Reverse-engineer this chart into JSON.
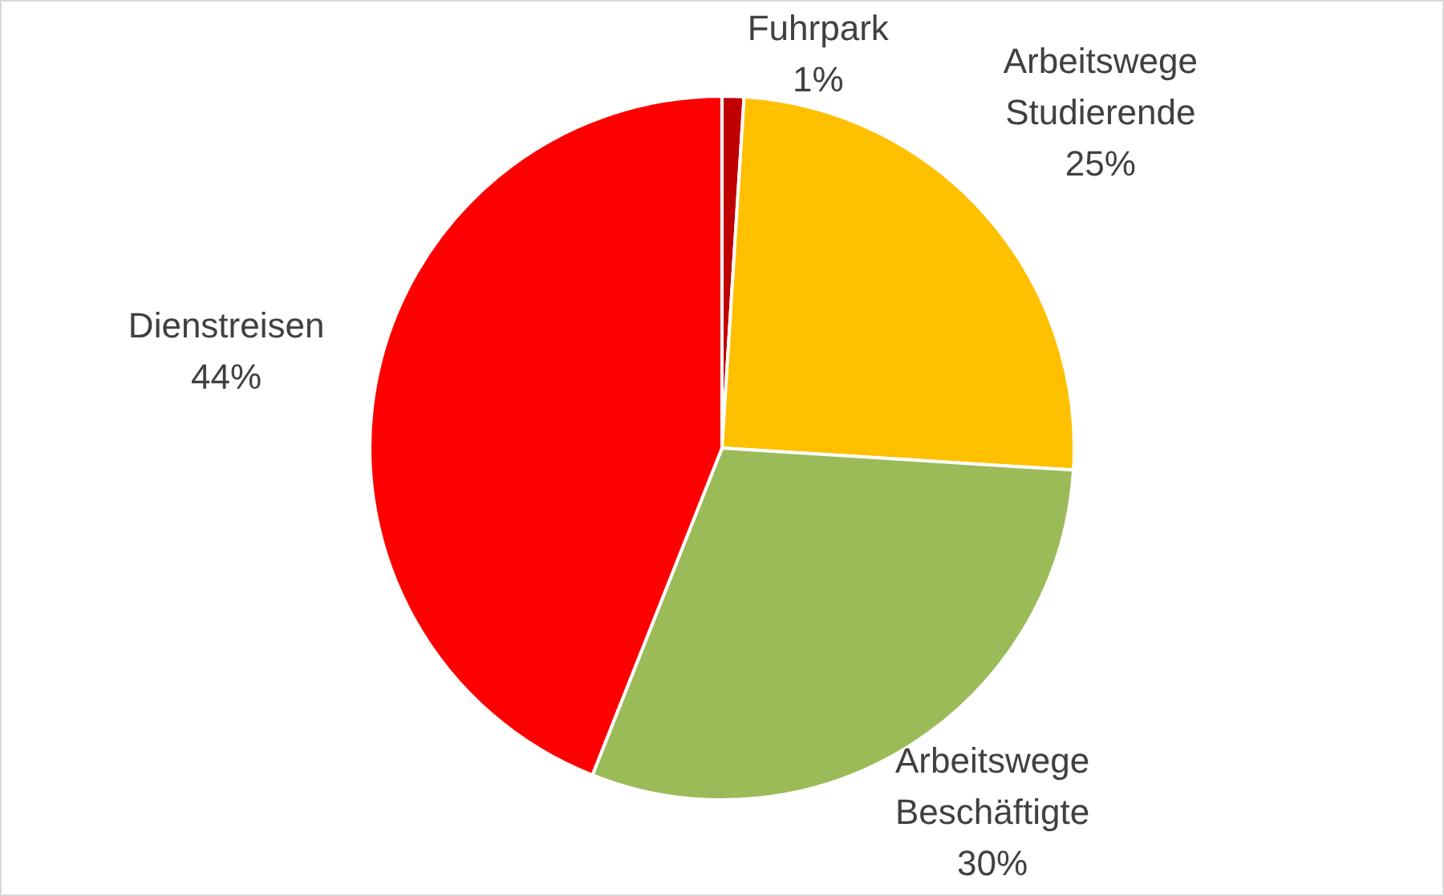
{
  "chart_data": {
    "type": "pie",
    "categories": [
      "Fuhrpark",
      "Arbeitswege Studierende",
      "Arbeitswege Beschäftigte",
      "Dienstreisen"
    ],
    "values": [
      1,
      25,
      30,
      44
    ],
    "colors": [
      "#c00000",
      "#ffc000",
      "#9bbb59",
      "#ff0000"
    ],
    "value_labels": [
      "1%",
      "25%",
      "30%",
      "44%"
    ],
    "legend": false
  }
}
